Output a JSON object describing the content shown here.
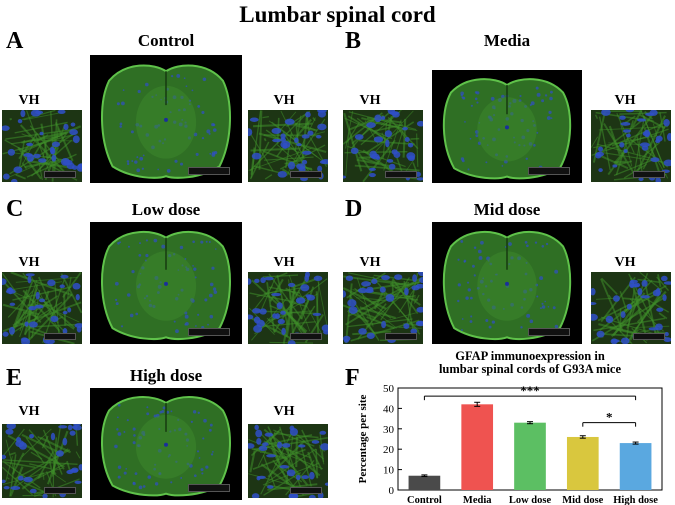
{
  "figure_title": "Lumbar spinal cord",
  "region_label": "VH",
  "panels": [
    {
      "letter": "A",
      "title": "Control"
    },
    {
      "letter": "B",
      "title": "Media"
    },
    {
      "letter": "C",
      "title": "Low dose"
    },
    {
      "letter": "D",
      "title": "Mid dose"
    },
    {
      "letter": "E",
      "title": "High dose"
    },
    {
      "letter": "F",
      "title": ""
    }
  ],
  "colors": {
    "tissue_green": "#3f8f2a",
    "nuclei_blue": "#2f4fc8",
    "background": "#000000"
  },
  "chart_data": {
    "type": "bar",
    "title": "GFAP immunoexpression in lumbar spinal cords of G93A mice",
    "title_lines": [
      "GFAP immunoexpression in",
      "lumbar spinal cords of G93A mice"
    ],
    "ylabel": "Percentage per site",
    "xlabel": "",
    "categories": [
      "Control",
      "Media",
      "Low dose",
      "Mid dose",
      "High dose"
    ],
    "values": [
      7,
      42,
      33,
      26,
      23
    ],
    "errors": [
      0.4,
      1.0,
      0.5,
      0.6,
      0.5
    ],
    "colors": [
      "#4a4a4a",
      "#ef5350",
      "#5cbf63",
      "#d9c73e",
      "#5aa8e0"
    ],
    "ylim": [
      0,
      50
    ],
    "yticks": [
      0,
      10,
      20,
      30,
      40,
      50
    ],
    "grid": false,
    "significance": [
      {
        "from": "Control",
        "to": "High dose",
        "label": "***"
      },
      {
        "from": "Mid dose",
        "to": "High dose",
        "label": "*"
      }
    ]
  }
}
